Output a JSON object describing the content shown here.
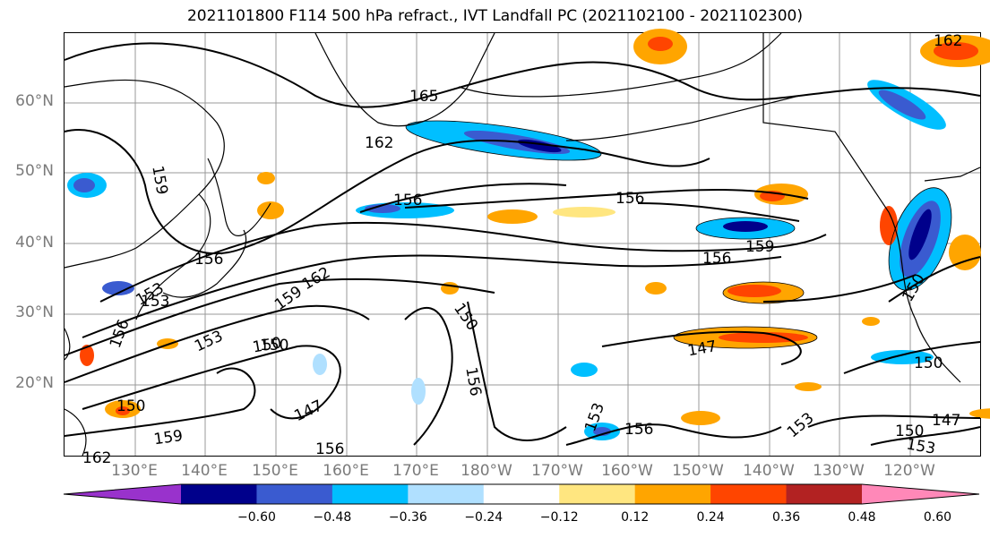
{
  "title": "2021101800 F114 500 hPa refract., IVT Landfall PC (2021102100 - 2021102300)",
  "lat_labels": [
    "60°N",
    "50°N",
    "40°N",
    "30°N",
    "20°N"
  ],
  "lon_labels": [
    "130°E",
    "140°E",
    "150°E",
    "160°E",
    "170°E",
    "180°W",
    "170°W",
    "160°W",
    "150°W",
    "140°W",
    "130°W",
    "120°W"
  ],
  "colorbar": {
    "colors": [
      "#9932cc",
      "#00008b",
      "#3a5bd0",
      "#00bfff",
      "#b0e0ff",
      "#ffffff",
      "#ffe680",
      "#ffa500",
      "#ff4500",
      "#b22222",
      "#ff88b8"
    ],
    "ticks": [
      "−0.60",
      "−0.48",
      "−0.36",
      "−0.24",
      "−0.12",
      "0.12",
      "0.24",
      "0.36",
      "0.48",
      "0.60"
    ]
  },
  "contour_labels": [
    "165",
    "162",
    "159",
    "156",
    "156",
    "156",
    "159",
    "156",
    "162",
    "156",
    "153",
    "159",
    "162",
    "150",
    "153",
    "150",
    "147",
    "156",
    "150",
    "156",
    "153",
    "153",
    "147",
    "150",
    "150",
    "147",
    "153",
    "156",
    "153",
    "162",
    "150",
    "159",
    "150"
  ]
}
